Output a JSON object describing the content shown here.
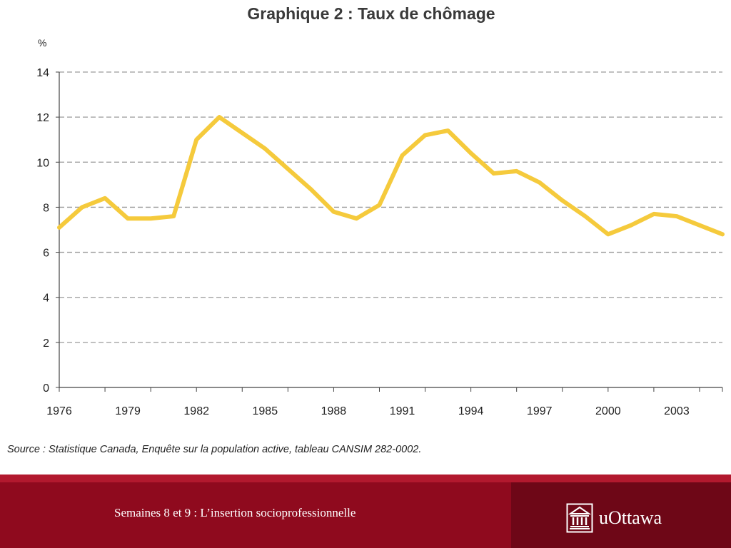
{
  "chart_data": {
    "type": "line",
    "title": "Graphique 2 : Taux de chômage",
    "ylabel": "%",
    "xlabel": "",
    "ylim": [
      0,
      14
    ],
    "yticks": [
      0,
      2,
      4,
      6,
      8,
      10,
      12,
      14
    ],
    "xticklabels": [
      "1976",
      "1979",
      "1982",
      "1985",
      "1988",
      "1991",
      "1994",
      "1997",
      "2000",
      "2003"
    ],
    "grid": true,
    "line_color": "#f5ca3c",
    "x": [
      1976,
      1977,
      1978,
      1979,
      1980,
      1981,
      1982,
      1983,
      1984,
      1985,
      1986,
      1987,
      1988,
      1989,
      1990,
      1991,
      1992,
      1993,
      1994,
      1995,
      1996,
      1997,
      1998,
      1999,
      2000,
      2001,
      2002,
      2003,
      2004,
      2005
    ],
    "series": [
      {
        "values": [
          7.1,
          8.0,
          8.4,
          7.5,
          7.5,
          7.6,
          11.0,
          12.0,
          11.3,
          10.6,
          9.7,
          8.8,
          7.8,
          7.5,
          8.1,
          10.3,
          11.2,
          11.4,
          10.4,
          9.5,
          9.6,
          9.1,
          8.3,
          7.6,
          6.8,
          7.2,
          7.7,
          7.6,
          7.2,
          6.8
        ]
      }
    ]
  },
  "source": "Source : Statistique Canada, Enquête sur la population active, tableau CANSIM 282-0002.",
  "footer": {
    "text": "Semaines 8 et 9 : L’insertion socioprofessionnelle",
    "logo_text": "uOttawa",
    "logo_icon": "university-building-icon"
  }
}
